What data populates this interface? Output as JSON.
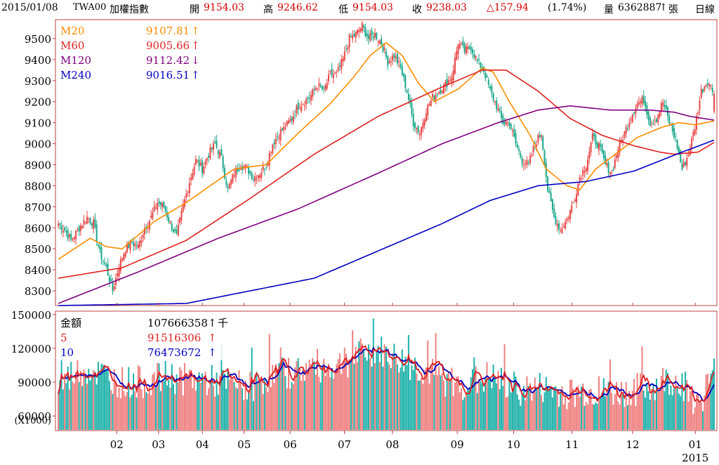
{
  "header": {
    "date": "2015/01/08",
    "symbol": "TWA00",
    "name": "加權指數",
    "open_label": "開",
    "open": "9154.03",
    "high_label": "高",
    "high": "9246.62",
    "low_label": "低",
    "low": "9154.03",
    "close_label": "收",
    "close": "9238.03",
    "change": "△157.94",
    "change_pct": "(1.74%)",
    "volume_label": "量",
    "volume": "6362887",
    "volume_arrow": "↑",
    "volume_unit": "張",
    "period": "日線"
  },
  "colors": {
    "up": "#e84545",
    "down": "#1aa88a",
    "ma20": "#ff8c00",
    "ma60": "#e02020",
    "ma120": "#800080",
    "ma240": "#0000c0",
    "vol_up": "#f08080",
    "vol_down": "#20b2aa",
    "vol5": "#e02020",
    "vol10": "#0000c0",
    "frame": "#c04040"
  },
  "chart_data": [
    {
      "type": "candlestick",
      "y_ticks": [
        "9500",
        "9400",
        "9300",
        "9200",
        "9100",
        "9000",
        "8900",
        "8800",
        "8700",
        "8600",
        "8500",
        "8400",
        "8300"
      ],
      "ylim": [
        8230,
        9590
      ],
      "legend": [
        {
          "name": "M20",
          "value": "9107.81",
          "arrow": "↑"
        },
        {
          "name": "M60",
          "value": "9005.66",
          "arrow": "↑"
        },
        {
          "name": "M120",
          "value": "9112.42",
          "arrow": "↓"
        },
        {
          "name": "M240",
          "value": "9016.51",
          "arrow": "↑"
        }
      ],
      "close_anchors": [
        [
          0,
          8620
        ],
        [
          4,
          8590
        ],
        [
          8,
          8540
        ],
        [
          14,
          8610
        ],
        [
          18,
          8650
        ],
        [
          22,
          8620
        ],
        [
          26,
          8480
        ],
        [
          30,
          8410
        ],
        [
          34,
          8300
        ],
        [
          38,
          8420
        ],
        [
          42,
          8500
        ],
        [
          46,
          8530
        ],
        [
          50,
          8510
        ],
        [
          54,
          8600
        ],
        [
          58,
          8650
        ],
        [
          62,
          8720
        ],
        [
          66,
          8700
        ],
        [
          70,
          8620
        ],
        [
          74,
          8560
        ],
        [
          78,
          8700
        ],
        [
          82,
          8820
        ],
        [
          86,
          8920
        ],
        [
          90,
          8880
        ],
        [
          94,
          8950
        ],
        [
          98,
          9000
        ],
        [
          102,
          8930
        ],
        [
          106,
          8780
        ],
        [
          110,
          8860
        ],
        [
          114,
          8900
        ],
        [
          118,
          8880
        ],
        [
          122,
          8840
        ],
        [
          126,
          8860
        ],
        [
          130,
          8900
        ],
        [
          134,
          9000
        ],
        [
          138,
          9050
        ],
        [
          142,
          9080
        ],
        [
          146,
          9120
        ],
        [
          150,
          9180
        ],
        [
          154,
          9200
        ],
        [
          158,
          9230
        ],
        [
          162,
          9280
        ],
        [
          166,
          9250
        ],
        [
          170,
          9330
        ],
        [
          174,
          9330
        ],
        [
          178,
          9400
        ],
        [
          182,
          9500
        ],
        [
          186,
          9520
        ],
        [
          190,
          9560
        ],
        [
          194,
          9500
        ],
        [
          198,
          9520
        ],
        [
          202,
          9480
        ],
        [
          206,
          9390
        ],
        [
          210,
          9420
        ],
        [
          214,
          9360
        ],
        [
          218,
          9250
        ],
        [
          222,
          9100
        ],
        [
          226,
          9050
        ],
        [
          230,
          9160
        ],
        [
          234,
          9220
        ],
        [
          238,
          9250
        ],
        [
          242,
          9280
        ],
        [
          246,
          9320
        ],
        [
          250,
          9480
        ],
        [
          254,
          9440
        ],
        [
          258,
          9460
        ],
        [
          262,
          9390
        ],
        [
          266,
          9350
        ],
        [
          270,
          9250
        ],
        [
          274,
          9180
        ],
        [
          278,
          9100
        ],
        [
          282,
          9100
        ],
        [
          286,
          9000
        ],
        [
          290,
          8920
        ],
        [
          294,
          8900
        ],
        [
          298,
          9000
        ],
        [
          302,
          9050
        ],
        [
          306,
          8780
        ],
        [
          310,
          8650
        ],
        [
          314,
          8590
        ],
        [
          318,
          8640
        ],
        [
          322,
          8720
        ],
        [
          326,
          8840
        ],
        [
          330,
          8900
        ],
        [
          334,
          9030
        ],
        [
          338,
          8990
        ],
        [
          342,
          8900
        ],
        [
          346,
          8860
        ],
        [
          350,
          8980
        ],
        [
          354,
          9050
        ],
        [
          358,
          9130
        ],
        [
          362,
          9190
        ],
        [
          366,
          9210
        ],
        [
          370,
          9100
        ],
        [
          374,
          9120
        ],
        [
          378,
          9200
        ],
        [
          382,
          9100
        ],
        [
          386,
          9020
        ],
        [
          390,
          8880
        ],
        [
          394,
          8950
        ],
        [
          398,
          9080
        ],
        [
          402,
          9250
        ],
        [
          406,
          9300
        ],
        [
          410,
          9238
        ]
      ],
      "ma_anchors": {
        "M20": [
          [
            0,
            8450
          ],
          [
            20,
            8550
          ],
          [
            30,
            8510
          ],
          [
            40,
            8500
          ],
          [
            60,
            8630
          ],
          [
            80,
            8720
          ],
          [
            95,
            8800
          ],
          [
            110,
            8880
          ],
          [
            130,
            8900
          ],
          [
            150,
            9050
          ],
          [
            170,
            9190
          ],
          [
            185,
            9320
          ],
          [
            195,
            9420
          ],
          [
            205,
            9480
          ],
          [
            215,
            9420
          ],
          [
            225,
            9290
          ],
          [
            235,
            9200
          ],
          [
            250,
            9260
          ],
          [
            265,
            9360
          ],
          [
            272,
            9340
          ],
          [
            282,
            9200
          ],
          [
            295,
            9040
          ],
          [
            305,
            8880
          ],
          [
            318,
            8800
          ],
          [
            326,
            8780
          ],
          [
            336,
            8880
          ],
          [
            350,
            8960
          ],
          [
            362,
            9030
          ],
          [
            378,
            9080
          ],
          [
            388,
            9100
          ],
          [
            398,
            9090
          ],
          [
            410,
            9108
          ]
        ],
        "M60": [
          [
            0,
            8360
          ],
          [
            40,
            8410
          ],
          [
            80,
            8540
          ],
          [
            120,
            8740
          ],
          [
            160,
            8950
          ],
          [
            200,
            9130
          ],
          [
            240,
            9270
          ],
          [
            265,
            9350
          ],
          [
            280,
            9350
          ],
          [
            300,
            9250
          ],
          [
            320,
            9120
          ],
          [
            340,
            9040
          ],
          [
            360,
            8990
          ],
          [
            376,
            8960
          ],
          [
            385,
            8950
          ],
          [
            400,
            8960
          ],
          [
            410,
            9006
          ]
        ],
        "M120": [
          [
            0,
            8240
          ],
          [
            50,
            8390
          ],
          [
            100,
            8550
          ],
          [
            150,
            8690
          ],
          [
            200,
            8860
          ],
          [
            240,
            9000
          ],
          [
            275,
            9100
          ],
          [
            300,
            9160
          ],
          [
            320,
            9180
          ],
          [
            345,
            9160
          ],
          [
            370,
            9160
          ],
          [
            385,
            9150
          ],
          [
            395,
            9130
          ],
          [
            410,
            9112
          ]
        ],
        "M240": [
          [
            0,
            8230
          ],
          [
            80,
            8240
          ],
          [
            120,
            8300
          ],
          [
            160,
            8360
          ],
          [
            200,
            8490
          ],
          [
            240,
            8620
          ],
          [
            270,
            8730
          ],
          [
            300,
            8800
          ],
          [
            330,
            8820
          ],
          [
            360,
            8870
          ],
          [
            390,
            8960
          ],
          [
            410,
            9017
          ]
        ]
      }
    },
    {
      "type": "bar",
      "y_ticks": [
        "150000",
        "120000",
        "90000",
        "60000"
      ],
      "y_unit": "(X1000)",
      "ylim": [
        47000,
        153000
      ],
      "legend": [
        {
          "name": "金額",
          "value": "107666358",
          "arrow": "↑",
          "unit": "千"
        },
        {
          "name": "5",
          "value": "91516306",
          "arrow": "↑"
        },
        {
          "name": "10",
          "value": "76473672",
          "arrow": "↑"
        }
      ],
      "vol_anchors": [
        [
          0,
          85000
        ],
        [
          10,
          100000
        ],
        [
          20,
          102000
        ],
        [
          30,
          95000
        ],
        [
          40,
          90000
        ],
        [
          50,
          90000
        ],
        [
          60,
          92000
        ],
        [
          70,
          95000
        ],
        [
          80,
          92000
        ],
        [
          90,
          92000
        ],
        [
          100,
          90000
        ],
        [
          110,
          88000
        ],
        [
          120,
          85000
        ],
        [
          130,
          95000
        ],
        [
          140,
          98000
        ],
        [
          150,
          100000
        ],
        [
          160,
          105000
        ],
        [
          170,
          103000
        ],
        [
          180,
          108000
        ],
        [
          190,
          115000
        ],
        [
          200,
          118000
        ],
        [
          210,
          112000
        ],
        [
          220,
          105000
        ],
        [
          230,
          100000
        ],
        [
          240,
          92000
        ],
        [
          250,
          88000
        ],
        [
          260,
          90000
        ],
        [
          270,
          95000
        ],
        [
          280,
          87000
        ],
        [
          290,
          83000
        ],
        [
          300,
          85000
        ],
        [
          310,
          82000
        ],
        [
          320,
          80000
        ],
        [
          330,
          82000
        ],
        [
          340,
          80000
        ],
        [
          350,
          80000
        ],
        [
          360,
          83000
        ],
        [
          370,
          85000
        ],
        [
          380,
          92000
        ],
        [
          390,
          90000
        ],
        [
          400,
          70000
        ],
        [
          410,
          100000
        ]
      ]
    }
  ],
  "x_axis": {
    "months": [
      {
        "label": "02",
        "day": 28
      },
      {
        "label": "03",
        "day": 48
      },
      {
        "label": "04",
        "day": 69
      },
      {
        "label": "05",
        "day": 89
      },
      {
        "label": "06",
        "day": 111
      },
      {
        "label": "07",
        "day": 137
      },
      {
        "label": "08",
        "day": 160
      },
      {
        "label": "09",
        "day": 191
      },
      {
        "label": "10",
        "day": 218
      },
      {
        "label": "11",
        "day": 246
      },
      {
        "label": "12",
        "day": 275
      },
      {
        "label": "01",
        "day": 305
      }
    ],
    "year": "2015",
    "total_days": 315
  }
}
